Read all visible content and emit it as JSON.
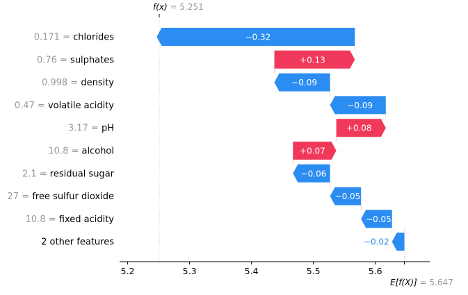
{
  "chart_data": {
    "type": "waterfall",
    "title": "",
    "xlabel": "",
    "ylabel": "",
    "xlim": [
      5.187,
      5.688
    ],
    "xticks": [
      "5.2",
      "5.3",
      "5.4",
      "5.5",
      "5.6"
    ],
    "xtick_values": [
      5.2,
      5.3,
      5.4,
      5.5,
      5.6
    ],
    "fx_label": "f(x)",
    "fx_value": "5.251",
    "base_label": "E[f(X)]",
    "base_value": "5.647",
    "fx_numeric": 5.251,
    "base_numeric": 5.647,
    "colors": {
      "positive": "#f0395a",
      "negative": "#2b8cf2"
    },
    "rows": [
      {
        "value": "0.171",
        "feature": "chlorides",
        "shap": -0.32,
        "label": "−0.32"
      },
      {
        "value": "0.76",
        "feature": "sulphates",
        "shap": 0.13,
        "label": "+0.13"
      },
      {
        "value": "0.998",
        "feature": "density",
        "shap": -0.09,
        "label": "−0.09"
      },
      {
        "value": "0.47",
        "feature": "volatile acidity",
        "shap": -0.09,
        "label": "−0.09"
      },
      {
        "value": "3.17",
        "feature": "pH",
        "shap": 0.08,
        "label": "+0.08"
      },
      {
        "value": "10.8",
        "feature": "alcohol",
        "shap": 0.07,
        "label": "+0.07"
      },
      {
        "value": "2.1",
        "feature": "residual sugar",
        "shap": -0.06,
        "label": "−0.06"
      },
      {
        "value": "27",
        "feature": "free sulfur dioxide",
        "shap": -0.05,
        "label": "−0.05"
      },
      {
        "value": "10.8",
        "feature": "fixed acidity",
        "shap": -0.05,
        "label": "−0.05"
      },
      {
        "value": "",
        "feature": "2 other features",
        "shap": -0.02,
        "label": "−0.02"
      }
    ]
  }
}
